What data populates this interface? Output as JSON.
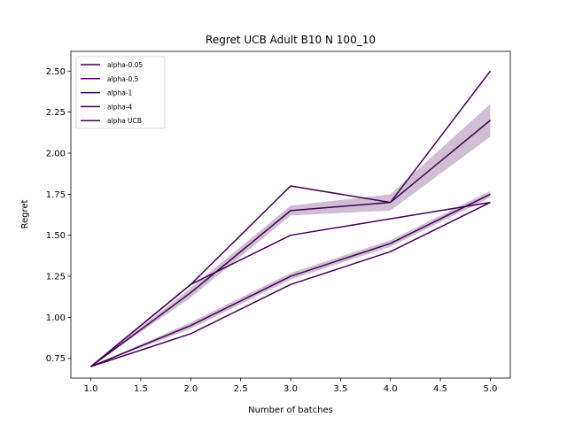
{
  "chart_data": {
    "type": "line",
    "title": "Regret UCB Adult B10 N 100_10",
    "xlabel": "Number of batches",
    "ylabel": "Regret",
    "xlim": [
      0.8,
      5.2
    ],
    "ylim": [
      0.63,
      2.62
    ],
    "xticks": [
      1.0,
      1.5,
      2.0,
      2.5,
      3.0,
      3.5,
      4.0,
      4.5,
      5.0
    ],
    "xtick_labels": [
      "1.0",
      "1.5",
      "2.0",
      "2.5",
      "3.0",
      "3.5",
      "4.0",
      "4.5",
      "5.0"
    ],
    "yticks": [
      0.75,
      1.0,
      1.25,
      1.5,
      1.75,
      2.0,
      2.25,
      2.5
    ],
    "ytick_labels": [
      "0.75",
      "1.00",
      "1.25",
      "1.50",
      "1.75",
      "2.00",
      "2.25",
      "2.50"
    ],
    "grid": false,
    "legend_position": "top-left",
    "line_color": "#440154",
    "band_color": "#440154",
    "x": [
      1,
      2,
      3,
      4,
      5
    ],
    "series": [
      {
        "name": "alpha-0.05",
        "values": [
          0.7,
          1.2,
          1.8,
          1.7,
          2.5
        ]
      },
      {
        "name": "alpha-0.5",
        "values": [
          0.7,
          1.2,
          1.5,
          1.6,
          1.7
        ]
      },
      {
        "name": "alpha-1",
        "values": [
          0.7,
          0.95,
          1.25,
          1.45,
          1.75
        ],
        "band_lower": [
          0.7,
          0.93,
          1.23,
          1.43,
          1.73
        ],
        "band_upper": [
          0.7,
          0.97,
          1.27,
          1.47,
          1.77
        ]
      },
      {
        "name": "alpha-4",
        "values": [
          0.7,
          1.15,
          1.65,
          1.7,
          2.2
        ],
        "band_lower": [
          0.7,
          1.12,
          1.62,
          1.65,
          2.1
        ],
        "band_upper": [
          0.7,
          1.18,
          1.68,
          1.75,
          2.3
        ]
      },
      {
        "name": "alpha UCB",
        "values": [
          0.7,
          0.9,
          1.2,
          1.4,
          1.7
        ]
      }
    ]
  }
}
